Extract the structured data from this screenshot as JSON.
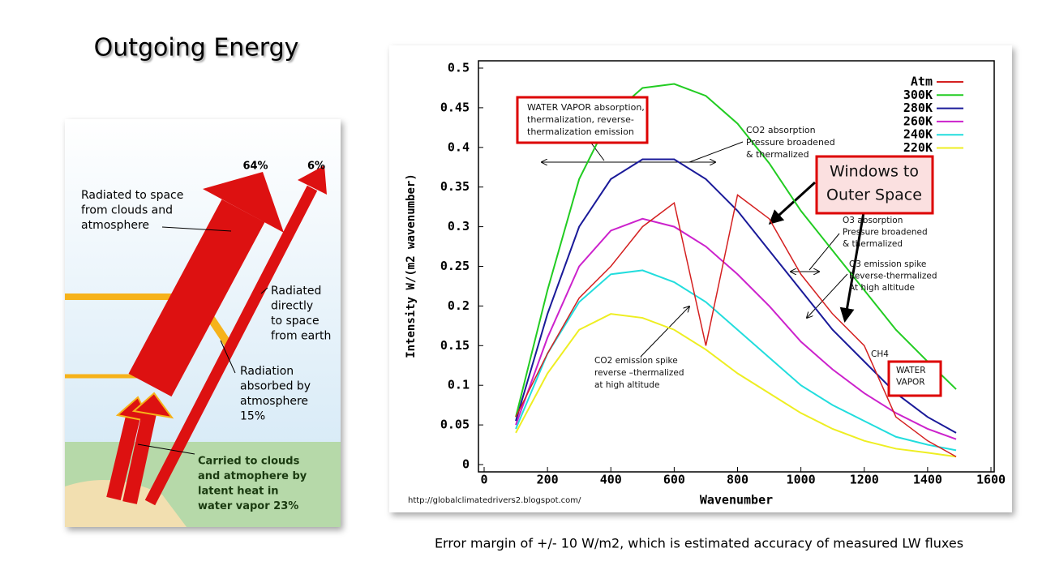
{
  "title": "Outgoing Energy",
  "caption": "Error margin of +/- 10 W/m2, which is estimated accuracy of measured LW fluxes",
  "diagram": {
    "labels": [
      {
        "lines": [
          "64%"
        ]
      },
      {
        "lines": [
          "6%"
        ]
      },
      {
        "lines": [
          "Radiated to space",
          "from clouds and",
          "atmosphere"
        ]
      },
      {
        "lines": [
          "Radiated",
          "directly",
          "to space",
          "from earth"
        ]
      },
      {
        "lines": [
          "Radiation",
          "absorbed by",
          "atmosphere",
          "15%"
        ]
      },
      {
        "lines": [
          "Carried to clouds",
          "and atmophere by",
          "latent heat in",
          "water vapor 23%"
        ]
      }
    ]
  },
  "chart_data": {
    "type": "line",
    "x_label": "Wavenumber",
    "y_label": "Intensity W/(m2 wavenumber)",
    "x": [
      100,
      200,
      300,
      400,
      500,
      600,
      700,
      800,
      900,
      1000,
      1100,
      1200,
      1300,
      1400,
      1490
    ],
    "series": [
      {
        "name": "Atm",
        "color": "#d42020",
        "values": [
          0.06,
          0.14,
          0.21,
          0.25,
          0.3,
          0.33,
          0.15,
          0.34,
          0.31,
          0.24,
          0.19,
          0.15,
          0.06,
          0.03,
          0.01
        ]
      },
      {
        "name": "300K",
        "color": "#22cc22",
        "values": [
          0.06,
          0.22,
          0.36,
          0.44,
          0.475,
          0.48,
          0.465,
          0.43,
          0.38,
          0.32,
          0.27,
          0.22,
          0.17,
          0.13,
          0.095
        ]
      },
      {
        "name": "280K",
        "color": "#1a1a99",
        "values": [
          0.055,
          0.19,
          0.3,
          0.36,
          0.385,
          0.385,
          0.36,
          0.32,
          0.27,
          0.22,
          0.17,
          0.13,
          0.09,
          0.06,
          0.04
        ]
      },
      {
        "name": "260K",
        "color": "#cc22cc",
        "values": [
          0.05,
          0.16,
          0.25,
          0.295,
          0.31,
          0.3,
          0.275,
          0.24,
          0.2,
          0.155,
          0.12,
          0.09,
          0.065,
          0.045,
          0.032
        ]
      },
      {
        "name": "240K",
        "color": "#22dddd",
        "values": [
          0.045,
          0.14,
          0.205,
          0.24,
          0.245,
          0.23,
          0.205,
          0.17,
          0.135,
          0.1,
          0.075,
          0.055,
          0.035,
          0.025,
          0.018
        ]
      },
      {
        "name": "220K",
        "color": "#eeee22",
        "values": [
          0.04,
          0.115,
          0.17,
          0.19,
          0.185,
          0.17,
          0.145,
          0.115,
          0.09,
          0.065,
          0.045,
          0.03,
          0.02,
          0.015,
          0.01
        ]
      }
    ],
    "xlim": [
      0,
      1600
    ],
    "xticks": [
      0,
      200,
      400,
      600,
      800,
      1000,
      1200,
      1400,
      1600
    ],
    "ylim": [
      0,
      0.5
    ],
    "yticks": [
      0,
      0.05,
      0.1,
      0.15,
      0.2,
      0.25,
      0.3,
      0.35,
      0.4,
      0.45,
      0.5
    ],
    "legend": "top-right",
    "grid": false,
    "annotations": [
      {
        "lines": [
          "WATER VAPOR absorption,",
          "thermalization, reverse-",
          "thermalization emission"
        ]
      },
      {
        "lines": [
          "CO2 absorption",
          "Pressure broadened",
          "& thermalized"
        ]
      },
      {
        "lines": [
          "Windows to",
          "Outer Space"
        ]
      },
      {
        "lines": [
          "O3 absorption",
          "Pressure broadened",
          "& thermalized"
        ]
      },
      {
        "lines": [
          "O3 emission spike",
          "Reverse-thermalized",
          "At high altitude"
        ]
      },
      {
        "lines": [
          "CH4"
        ]
      },
      {
        "lines": [
          "WATER",
          "VAPOR"
        ]
      },
      {
        "lines": [
          "CO2 emission spike",
          "reverse –thermalized",
          "at high altitude"
        ]
      },
      {
        "lines": [
          "http://globalclimatedrivers2.blogspot.com/"
        ]
      }
    ]
  }
}
